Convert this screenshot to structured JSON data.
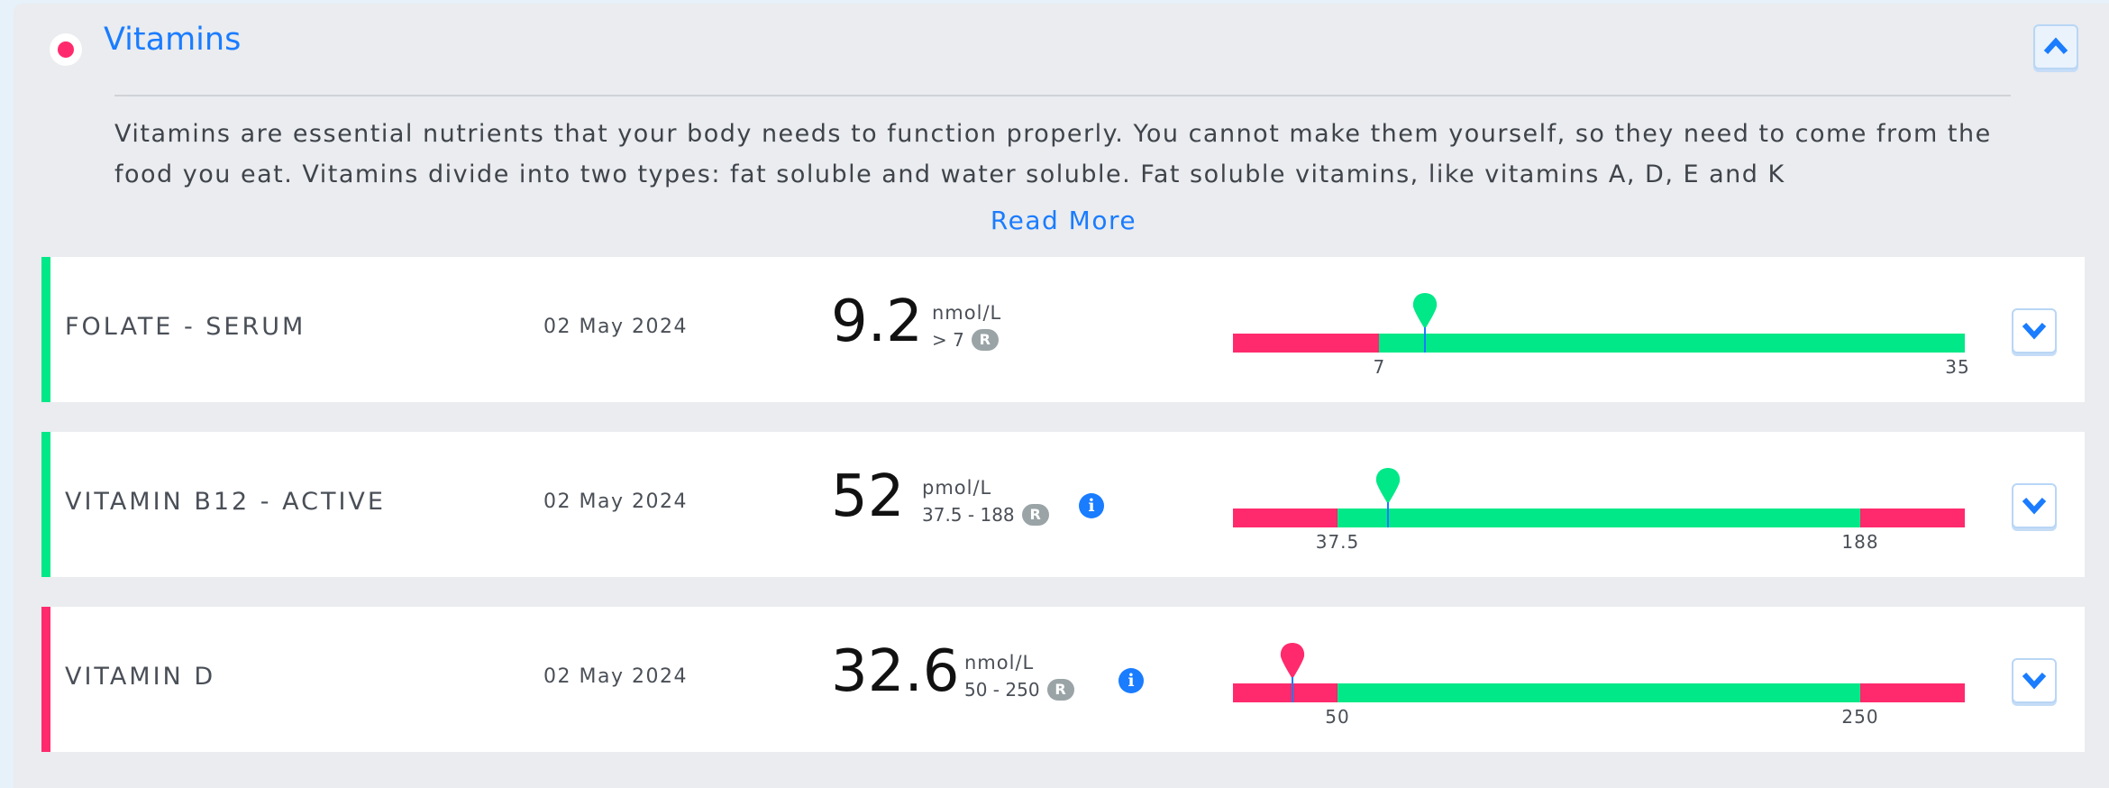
{
  "colors": {
    "accent": "#1a7cff",
    "normal": "#00e887",
    "abnormal": "#ff2a6d",
    "badge": "#9aa4a7"
  },
  "section": {
    "title": "Vitamins",
    "status": "abnormal",
    "collapse_icon": "chevron-up-icon",
    "description": "Vitamins are essential nutrients that your body needs to function properly. You cannot make them yourself, so they need to come from the food you eat. Vitamins divide into two types: fat soluble and water soluble. Fat soluble vitamins, like vitamins A, D, E and K",
    "read_more": "Read More"
  },
  "results": [
    {
      "name": "FOLATE - SERUM",
      "date": "02 May 2024",
      "value": "9.2",
      "unit": "nmol/L",
      "range": "> 7",
      "badge": "R",
      "info": false,
      "status": "normal",
      "gauge": {
        "value": 9.2,
        "low": 7,
        "high": null,
        "max": 35,
        "tick_labels": [
          "7",
          "35"
        ]
      }
    },
    {
      "name": "VITAMIN B12 - ACTIVE",
      "date": "02 May 2024",
      "value": "52",
      "unit": "pmol/L",
      "range": "37.5 - 188",
      "badge": "R",
      "info": true,
      "status": "normal",
      "gauge": {
        "value": 52,
        "low": 37.5,
        "high": 188,
        "tick_labels": [
          "37.5",
          "188"
        ]
      }
    },
    {
      "name": "VITAMIN D",
      "date": "02 May 2024",
      "value": "32.6",
      "unit": "nmol/L",
      "range": "50 - 250",
      "badge": "R",
      "info": true,
      "status": "abnormal",
      "gauge": {
        "value": 32.6,
        "low": 50,
        "high": 250,
        "tick_labels": [
          "50",
          "250"
        ]
      }
    }
  ],
  "info_glyph": "i"
}
